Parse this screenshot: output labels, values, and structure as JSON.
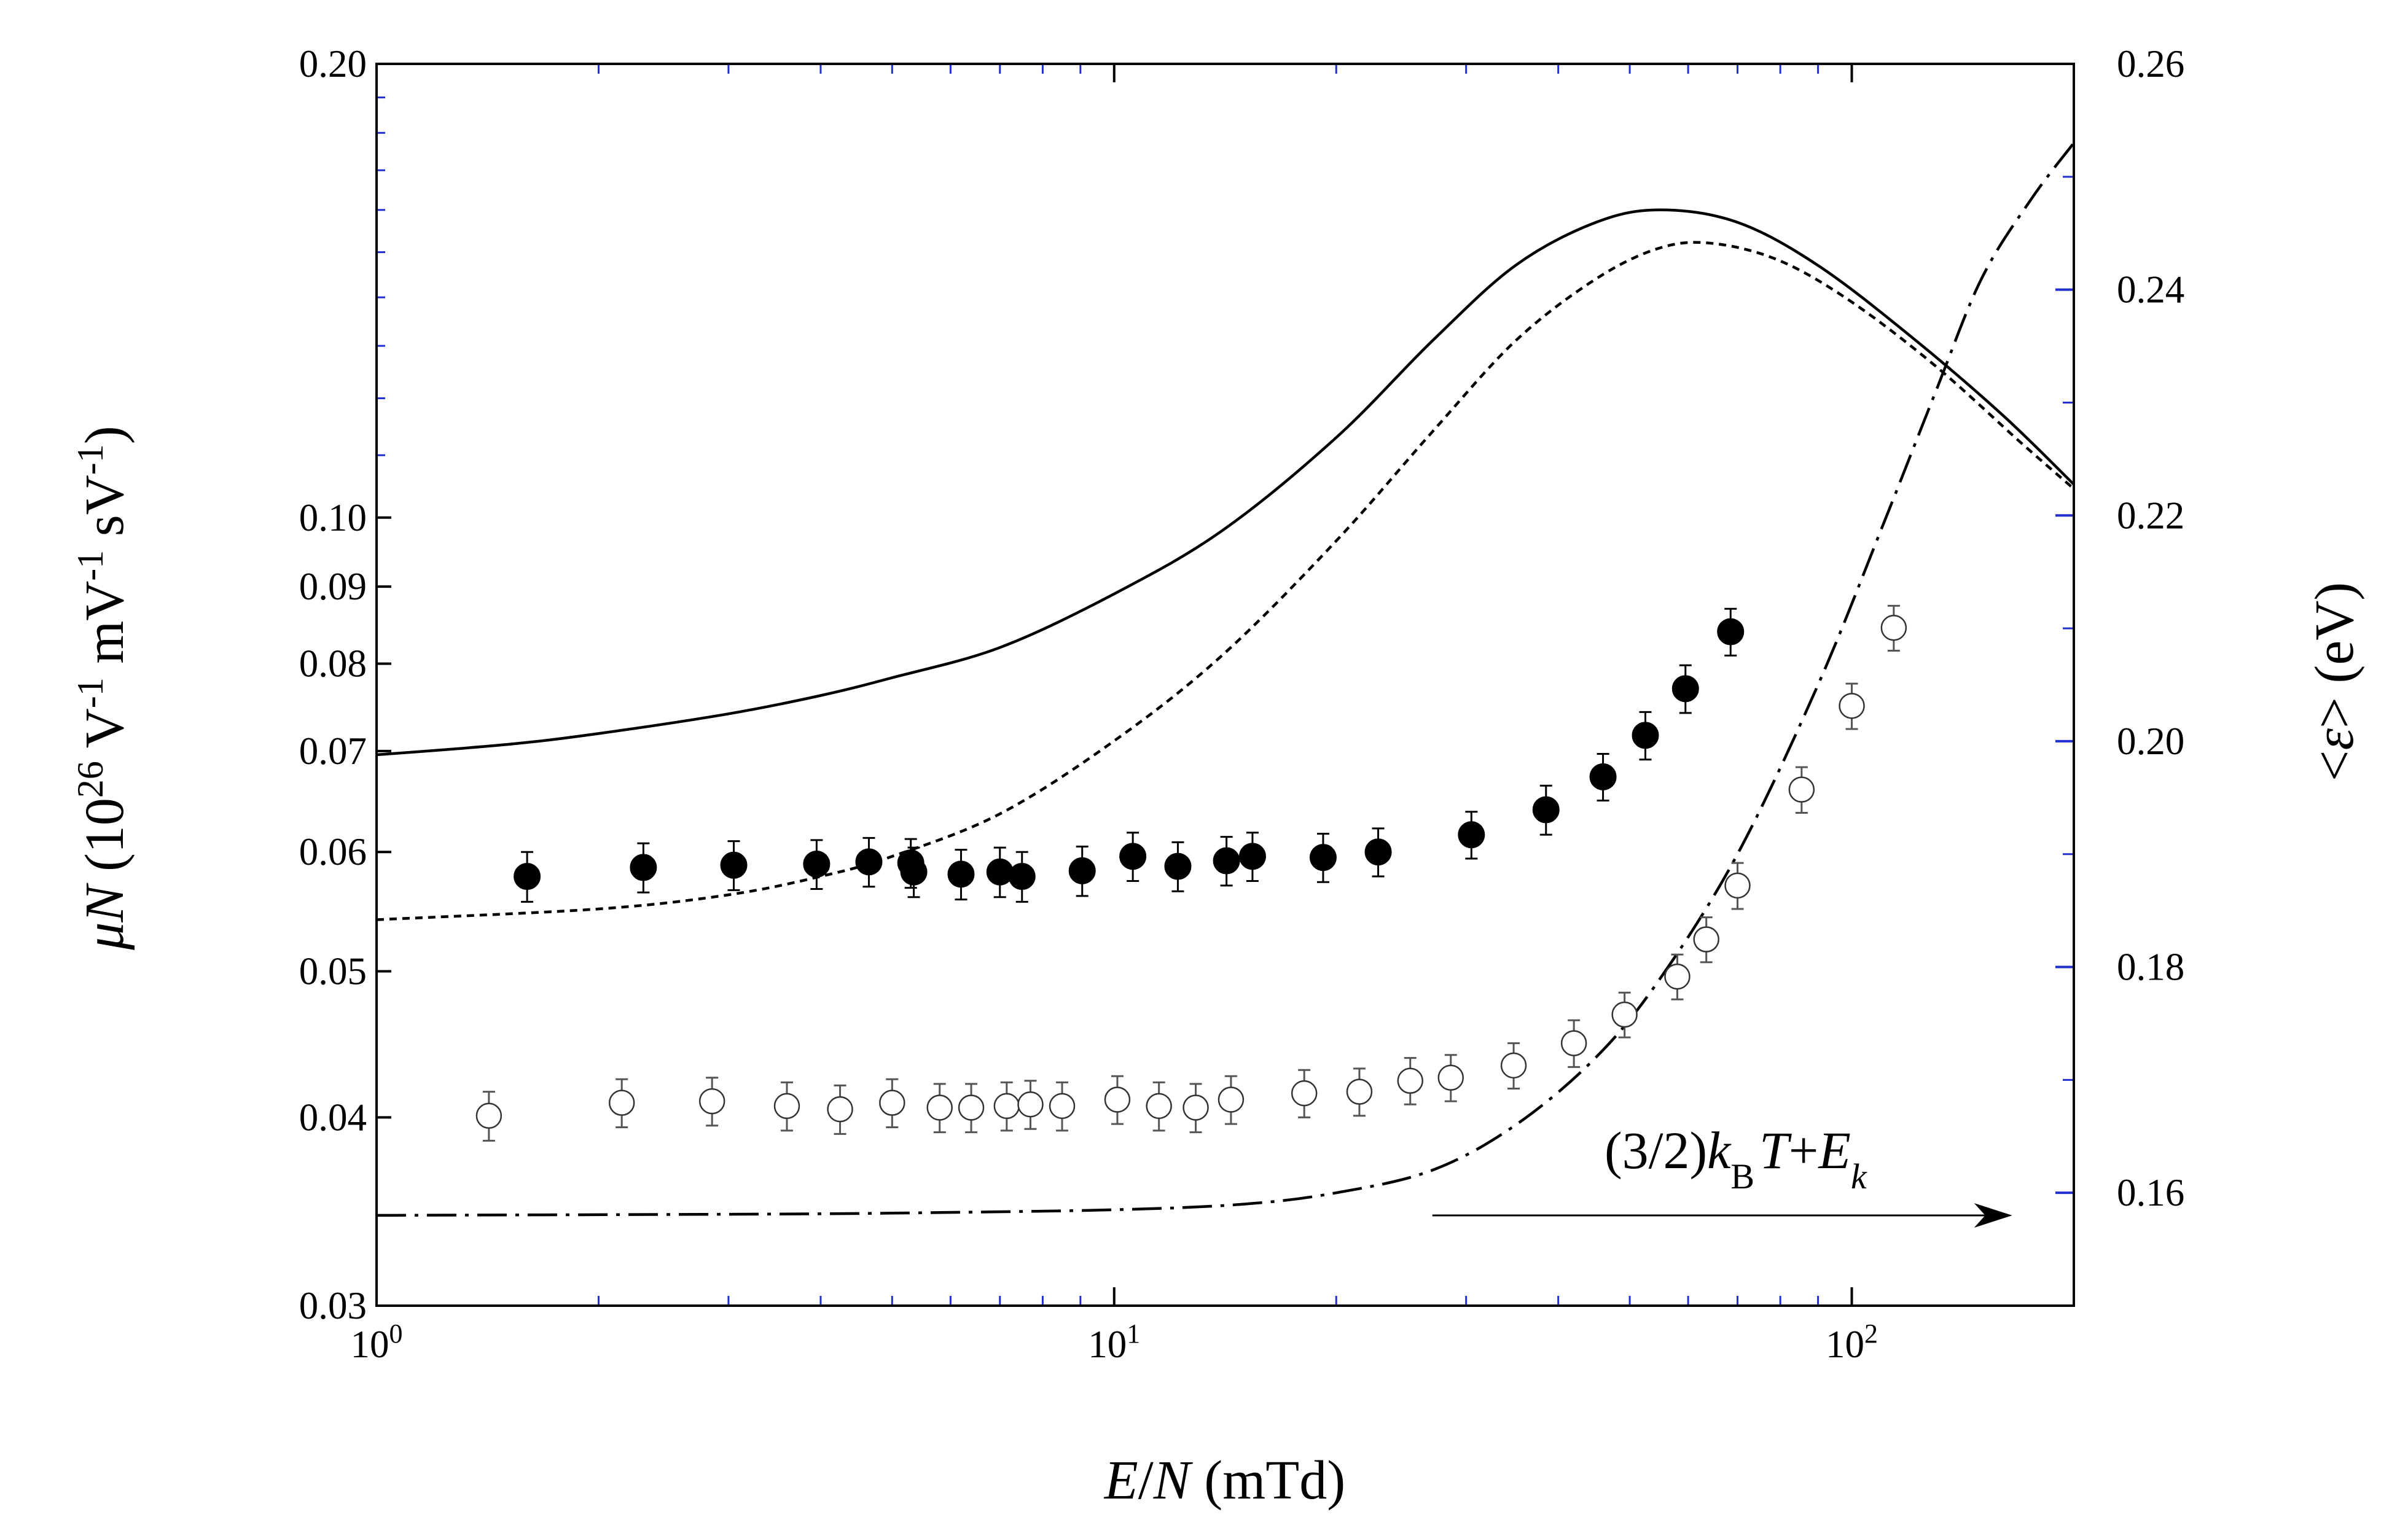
{
  "chart_data": {
    "type": "scatter",
    "x_axis": {
      "label_parts": [
        "E",
        "/",
        "N",
        " (mTd)"
      ],
      "scale": "log",
      "range": [
        1,
        200
      ],
      "major_ticks": [
        {
          "value": 1,
          "base": "10",
          "exp": "0"
        },
        {
          "value": 10,
          "base": "10",
          "exp": "1"
        },
        {
          "value": 100,
          "base": "10",
          "exp": "2"
        }
      ]
    },
    "y_left": {
      "label_parts": [
        "μN",
        " (10",
        "26",
        " V",
        "-1",
        " mV",
        "-1",
        " sV",
        "-1",
        ")"
      ],
      "scale": "log",
      "range": [
        0.03,
        0.2
      ],
      "ticks": [
        0.03,
        0.04,
        0.05,
        0.06,
        0.07,
        0.08,
        0.09,
        0.1,
        0.2
      ],
      "tick_labels": [
        "0.03",
        "0.04",
        "0.05",
        "0.06",
        "0.07",
        "0.08",
        "0.09",
        "0.10",
        "0.20"
      ]
    },
    "y_right": {
      "label_parts": [
        "<",
        "ε",
        ">",
        " (eV)"
      ],
      "scale": "linear",
      "range": [
        0.15,
        0.26
      ],
      "ticks": [
        0.16,
        0.18,
        0.2,
        0.22,
        0.24,
        0.26
      ],
      "tick_labels": [
        "0.16",
        "0.18",
        "0.20",
        "0.22",
        "0.24",
        "0.26"
      ]
    },
    "annotation": {
      "parts": [
        "(3/2)",
        "k",
        "B",
        "T",
        "+",
        "E",
        "k"
      ],
      "arrow": {
        "from_x": 27,
        "to_x": 165,
        "y_right_value": 0.158
      }
    },
    "series": [
      {
        "name": "mobility-filled",
        "axis": "left",
        "marker": "filled-circle",
        "points": [
          [
            1.6,
            0.0578,
            0.0022
          ],
          [
            2.3,
            0.0586,
            0.0022
          ],
          [
            3.05,
            0.0588,
            0.0022
          ],
          [
            3.95,
            0.0589,
            0.0022
          ],
          [
            4.65,
            0.0591,
            0.0022
          ],
          [
            5.3,
            0.059,
            0.0022
          ],
          [
            5.35,
            0.0582,
            0.0022
          ],
          [
            6.2,
            0.058,
            0.0022
          ],
          [
            7.0,
            0.0582,
            0.0022
          ],
          [
            7.5,
            0.0578,
            0.0022
          ],
          [
            9.05,
            0.0583,
            0.0022
          ],
          [
            10.6,
            0.0596,
            0.0022
          ],
          [
            12.2,
            0.0587,
            0.0022
          ],
          [
            14.2,
            0.0592,
            0.0022
          ],
          [
            15.4,
            0.0596,
            0.0022
          ],
          [
            19.2,
            0.0595,
            0.0022
          ],
          [
            22.8,
            0.06,
            0.0022
          ],
          [
            30.5,
            0.0616,
            0.0022
          ],
          [
            38.5,
            0.064,
            0.0024
          ],
          [
            46.0,
            0.0673,
            0.0024
          ],
          [
            52.5,
            0.0717,
            0.0026
          ],
          [
            59.5,
            0.077,
            0.0028
          ],
          [
            68.5,
            0.084,
            0.003
          ]
        ]
      },
      {
        "name": "mobility-open",
        "axis": "left",
        "marker": "open-circle",
        "points": [
          [
            1.42,
            0.0401,
            0.0015
          ],
          [
            2.15,
            0.0409,
            0.0015
          ],
          [
            2.85,
            0.041,
            0.0015
          ],
          [
            3.6,
            0.0407,
            0.0015
          ],
          [
            4.25,
            0.0405,
            0.0015
          ],
          [
            5.0,
            0.0409,
            0.0015
          ],
          [
            5.8,
            0.0406,
            0.0015
          ],
          [
            6.4,
            0.0406,
            0.0015
          ],
          [
            7.15,
            0.0407,
            0.0015
          ],
          [
            7.7,
            0.0408,
            0.0015
          ],
          [
            8.5,
            0.0407,
            0.0015
          ],
          [
            10.1,
            0.0411,
            0.0015
          ],
          [
            11.5,
            0.0407,
            0.0015
          ],
          [
            12.9,
            0.0406,
            0.0015
          ],
          [
            14.4,
            0.0411,
            0.0015
          ],
          [
            18.1,
            0.0415,
            0.0015
          ],
          [
            21.5,
            0.0416,
            0.0015
          ],
          [
            25.2,
            0.0423,
            0.0015
          ],
          [
            28.6,
            0.0425,
            0.0015
          ],
          [
            34.8,
            0.0433,
            0.0015
          ],
          [
            42.0,
            0.0448,
            0.0016
          ],
          [
            49.2,
            0.0468,
            0.0016
          ],
          [
            58.0,
            0.0496,
            0.0017
          ],
          [
            63.5,
            0.0525,
            0.0018
          ],
          [
            70.0,
            0.057,
            0.002
          ],
          [
            85.5,
            0.066,
            0.0023
          ],
          [
            100.0,
            0.075,
            0.0026
          ],
          [
            114.0,
            0.0845,
            0.0029
          ]
        ]
      },
      {
        "name": "solid-line",
        "axis": "left",
        "style": "solid",
        "points": [
          [
            1,
            0.0696
          ],
          [
            1.5,
            0.0707
          ],
          [
            2,
            0.0719
          ],
          [
            3,
            0.0741
          ],
          [
            4,
            0.0762
          ],
          [
            5,
            0.0783
          ],
          [
            7,
            0.082
          ],
          [
            10,
            0.089
          ],
          [
            14,
            0.098
          ],
          [
            20,
            0.113
          ],
          [
            27,
            0.131
          ],
          [
            35,
            0.147
          ],
          [
            45,
            0.157
          ],
          [
            55,
            0.16
          ],
          [
            70,
            0.157
          ],
          [
            90,
            0.147
          ],
          [
            120,
            0.132
          ],
          [
            160,
            0.117
          ],
          [
            200,
            0.1052
          ]
        ]
      },
      {
        "name": "short-dash-line",
        "axis": "left",
        "style": "short-dash",
        "points": [
          [
            1,
            0.0541
          ],
          [
            2,
            0.055
          ],
          [
            3,
            0.0562
          ],
          [
            4,
            0.0578
          ],
          [
            5,
            0.0596
          ],
          [
            7,
            0.0636
          ],
          [
            10,
            0.0711
          ],
          [
            14,
            0.081
          ],
          [
            20,
            0.0965
          ],
          [
            27,
            0.114
          ],
          [
            35,
            0.131
          ],
          [
            45,
            0.144
          ],
          [
            55,
            0.151
          ],
          [
            65,
            0.152
          ],
          [
            80,
            0.148
          ],
          [
            100,
            0.139
          ],
          [
            130,
            0.126
          ],
          [
            170,
            0.112
          ],
          [
            200,
            0.1045
          ]
        ]
      },
      {
        "name": "dash-dot-line",
        "axis": "right",
        "style": "dash-dot",
        "points": [
          [
            1,
            0.158
          ],
          [
            3,
            0.1581
          ],
          [
            5,
            0.1582
          ],
          [
            10,
            0.1585
          ],
          [
            15,
            0.159
          ],
          [
            20,
            0.16
          ],
          [
            27,
            0.162
          ],
          [
            35,
            0.166
          ],
          [
            45,
            0.172
          ],
          [
            55,
            0.179
          ],
          [
            70,
            0.19
          ],
          [
            90,
            0.205
          ],
          [
            110,
            0.219
          ],
          [
            130,
            0.231
          ],
          [
            150,
            0.241
          ],
          [
            175,
            0.248
          ],
          [
            200,
            0.253
          ]
        ]
      }
    ]
  }
}
